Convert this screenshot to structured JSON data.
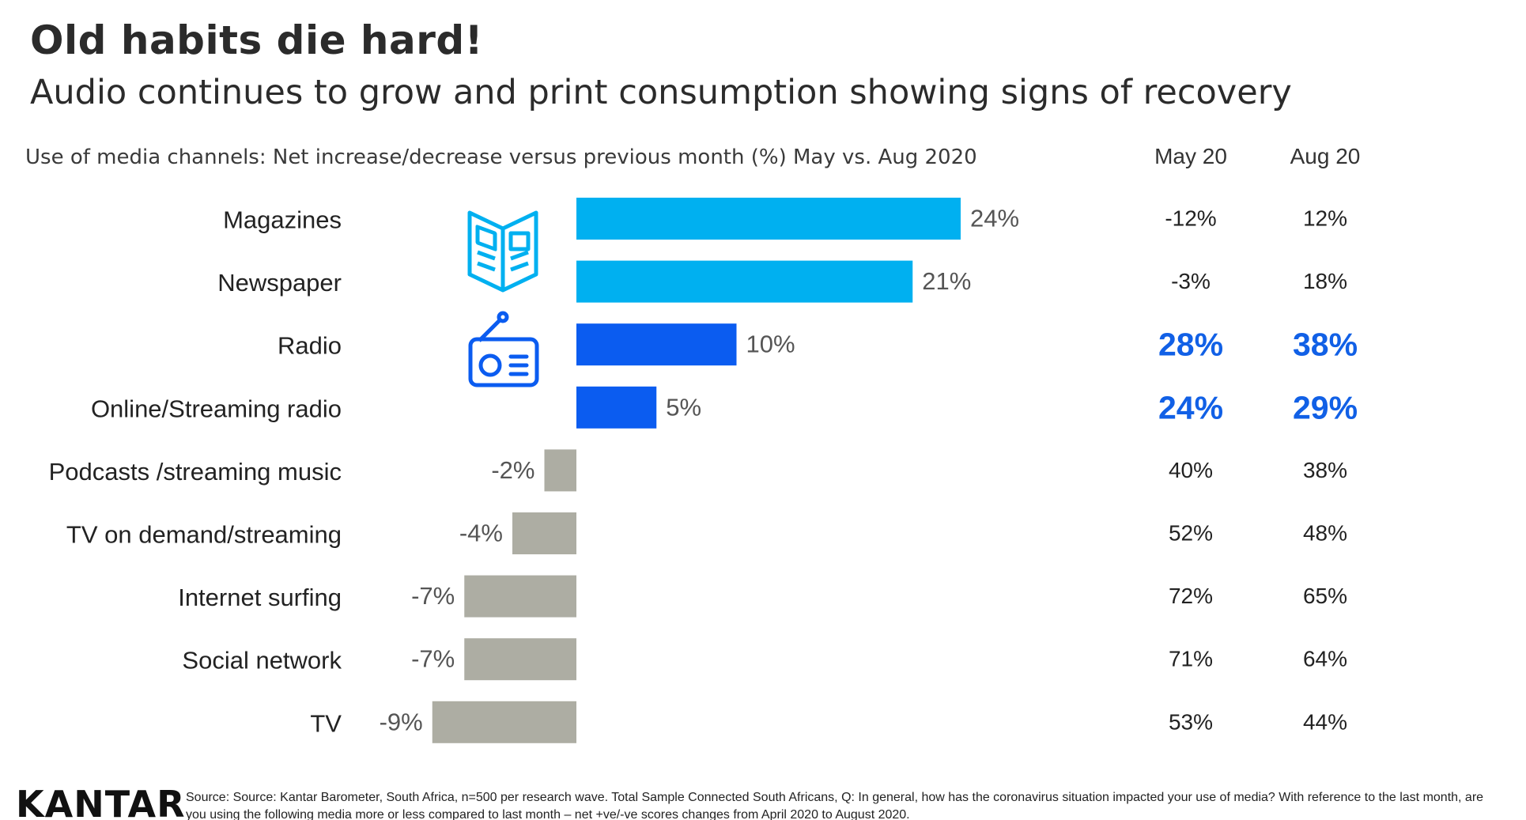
{
  "header": {
    "title": "Old habits die hard!",
    "subtitle": "Audio continues to grow and print consumption showing signs of recovery"
  },
  "table": {
    "col1_header": "May 20",
    "col2_header": "Aug 20",
    "rows": [
      {
        "may": "-12%",
        "aug": "12%",
        "highlight": false
      },
      {
        "may": "-3%",
        "aug": "18%",
        "highlight": false
      },
      {
        "may": "28%",
        "aug": "38%",
        "highlight": true
      },
      {
        "may": "24%",
        "aug": "29%",
        "highlight": true
      },
      {
        "may": "40%",
        "aug": "38%",
        "highlight": false
      },
      {
        "may": "52%",
        "aug": "48%",
        "highlight": false
      },
      {
        "may": "72%",
        "aug": "65%",
        "highlight": false
      },
      {
        "may": "71%",
        "aug": "64%",
        "highlight": false
      },
      {
        "may": "53%",
        "aug": "44%",
        "highlight": false
      }
    ]
  },
  "chart_data": {
    "type": "bar",
    "orientation": "horizontal",
    "title": "Use of media channels: Net increase/decrease versus previous month (%) May vs. Aug 2020",
    "categories": [
      "Magazines",
      "Newspaper",
      "Radio",
      "Online/Streaming radio",
      "Podcasts /streaming music",
      "TV on demand/streaming",
      "Internet surfing",
      "Social network",
      "TV"
    ],
    "values": [
      24,
      21,
      10,
      5,
      -2,
      -4,
      -7,
      -7,
      -9
    ],
    "value_labels": [
      "24%",
      "21%",
      "10%",
      "5%",
      "-2%",
      "-4%",
      "-7%",
      "-7%",
      "-9%"
    ],
    "bar_colors": [
      "#00b0f0",
      "#00b0f0",
      "#0b5cf0",
      "#0b5cf0",
      "#adada3",
      "#adada3",
      "#adada3",
      "#adada3",
      "#adada3"
    ],
    "xlim": [
      -9,
      24
    ],
    "grid": false,
    "legend": "none"
  },
  "colors": {
    "print": "#00b0f0",
    "audio": "#0b5cf0",
    "other": "#adada3",
    "highlight_text": "#1160e6",
    "value_label": "#555555"
  },
  "icons": {
    "print": "magazine-icon",
    "audio": "radio-icon"
  },
  "footer": {
    "logo": "KANTAR",
    "source": "Source: Source: Kantar Barometer, South Africa, n=500 per research wave. Total Sample Connected South Africans, Q: In general, how has the coronavirus situation impacted your use of media? With reference to the last month, are you using the following media more or less compared to last month – net +ve/-ve scores changes from April 2020 to August 2020."
  }
}
